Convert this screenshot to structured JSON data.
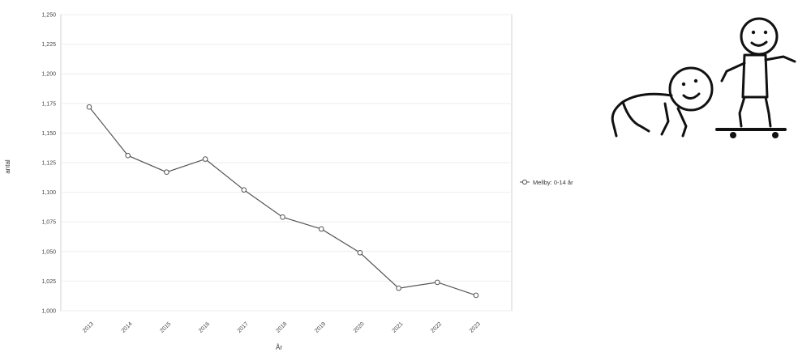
{
  "chart_data": {
    "type": "line",
    "title": "",
    "xlabel": "År",
    "ylabel": "antal",
    "categories": [
      "2013",
      "2014",
      "2015",
      "2016",
      "2017",
      "2018",
      "2019",
      "2020",
      "2021",
      "2022",
      "2023"
    ],
    "ylim": [
      1000,
      1250
    ],
    "yticks": [
      "1,000",
      "1,025",
      "1,050",
      "1,075",
      "1,100",
      "1,125",
      "1,150",
      "1,175",
      "1,200",
      "1,225",
      "1,250"
    ],
    "series": [
      {
        "name": "Mellby: 0-14 år",
        "values": [
          1172,
          1131,
          1117,
          1128,
          1102,
          1079,
          1069,
          1049,
          1019,
          1024,
          1013
        ]
      }
    ],
    "grid": true,
    "legend_position": "right",
    "colors": {
      "line": "#555555",
      "marker_fill": "#ffffff",
      "grid": "#eeeeee",
      "frame": "#cccccc"
    }
  },
  "legend": {
    "label": "Mellby: 0-14 år"
  },
  "illustration": {
    "icon": "stick-figures-crawling-and-skateboarding-icon"
  }
}
